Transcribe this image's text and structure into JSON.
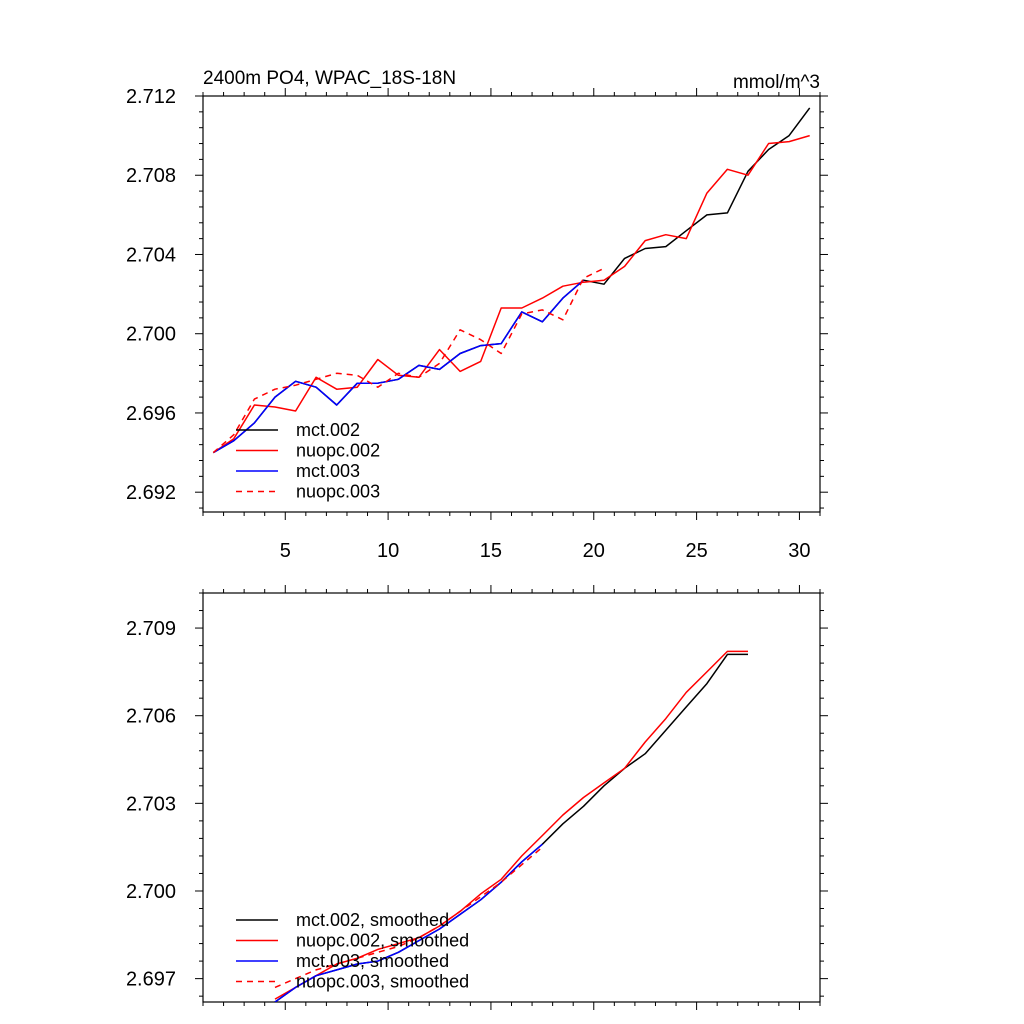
{
  "chart_data": [
    {
      "type": "line",
      "title_left": "2400m PO4, WPAC_18S-18N",
      "title_right": "mmol/m^3",
      "xlim": [
        1,
        31
      ],
      "ylim": [
        2.691,
        2.712
      ],
      "xticks": [
        5,
        10,
        15,
        20,
        25,
        30
      ],
      "xtick_labels": [
        "5",
        "10",
        "15",
        "20",
        "25",
        "30"
      ],
      "yticks": [
        2.692,
        2.696,
        2.7,
        2.704,
        2.708,
        2.712
      ],
      "ytick_labels": [
        "2.692",
        "2.696",
        "2.700",
        "2.704",
        "2.708",
        "2.712"
      ],
      "series": [
        {
          "name": "mct.002",
          "color": "#000000",
          "dash": "none",
          "x": [
            1.5,
            2.5,
            3.5,
            4.5,
            5.5,
            6.5,
            7.5,
            8.5,
            9.5,
            10.5,
            11.5,
            12.5,
            13.5,
            14.5,
            15.5,
            16.5,
            17.5,
            18.5,
            19.5,
            20.5,
            21.5,
            22.5,
            23.5,
            24.5,
            25.5,
            26.5,
            27.5,
            28.5,
            29.5,
            30.5
          ],
          "y": [
            2.694,
            2.6946,
            2.6955,
            2.6968,
            2.6976,
            2.6973,
            2.6964,
            2.6975,
            2.6975,
            2.6977,
            2.6984,
            2.6982,
            2.699,
            2.6994,
            2.6995,
            2.7011,
            2.7006,
            2.7018,
            2.7027,
            2.7025,
            2.7038,
            2.7043,
            2.7044,
            2.7052,
            2.706,
            2.7061,
            2.7082,
            2.7093,
            2.71,
            2.7114
          ]
        },
        {
          "name": "nuopc.002",
          "color": "#ff0000",
          "dash": "none",
          "x": [
            1.5,
            2.5,
            3.5,
            4.5,
            5.5,
            6.5,
            7.5,
            8.5,
            9.5,
            10.5,
            11.5,
            12.5,
            13.5,
            14.5,
            15.5,
            16.5,
            17.5,
            18.5,
            19.5,
            20.5,
            21.5,
            22.5,
            23.5,
            24.5,
            25.5,
            26.5,
            27.5,
            28.5,
            29.5,
            30.5
          ],
          "y": [
            2.694,
            2.6947,
            2.6964,
            2.6963,
            2.6961,
            2.6978,
            2.6972,
            2.6973,
            2.6987,
            2.6979,
            2.6978,
            2.6992,
            2.6981,
            2.6986,
            2.7013,
            2.7013,
            2.7018,
            2.7024,
            2.7026,
            2.7027,
            2.7034,
            2.7047,
            2.705,
            2.7048,
            2.7071,
            2.7083,
            2.708,
            2.7096,
            2.7097,
            2.71
          ]
        },
        {
          "name": "mct.003",
          "color": "#0000ff",
          "dash": "none",
          "x": [
            1.5,
            2.5,
            3.5,
            4.5,
            5.5,
            6.5,
            7.5,
            8.5,
            9.5,
            10.5,
            11.5,
            12.5,
            13.5,
            14.5,
            15.5,
            16.5,
            17.5,
            18.5,
            19.5
          ],
          "y": [
            2.694,
            2.6946,
            2.6955,
            2.6968,
            2.6976,
            2.6973,
            2.6964,
            2.6975,
            2.6975,
            2.6977,
            2.6984,
            2.6982,
            2.699,
            2.6994,
            2.6995,
            2.7011,
            2.7006,
            2.7018,
            2.7027
          ]
        },
        {
          "name": "nuopc.003",
          "color": "#ff0000",
          "dash": "6,5",
          "x": [
            1.5,
            2.5,
            3.5,
            4.5,
            5.5,
            6.5,
            7.5,
            8.5,
            9.5,
            10.5,
            11.5,
            12.5,
            13.5,
            14.5,
            15.5,
            16.5,
            17.5,
            18.5,
            19.5,
            20.5
          ],
          "y": [
            2.694,
            2.6949,
            2.6967,
            2.6972,
            2.6974,
            2.6977,
            2.698,
            2.6979,
            2.6973,
            2.698,
            2.6978,
            2.6985,
            2.7002,
            2.6997,
            2.699,
            2.701,
            2.7012,
            2.7007,
            2.7028,
            2.7033
          ]
        }
      ]
    },
    {
      "type": "line",
      "xlim": [
        1,
        31
      ],
      "ylim": [
        2.6962,
        2.7102
      ],
      "xticks": [
        5,
        10,
        15,
        20,
        25,
        30
      ],
      "yticks": [
        2.697,
        2.7,
        2.703,
        2.706,
        2.709
      ],
      "ytick_labels": [
        "2.697",
        "2.700",
        "2.703",
        "2.706",
        "2.709"
      ],
      "series": [
        {
          "name": "mct.002, smoothed",
          "color": "#000000",
          "dash": "none",
          "x": [
            4.5,
            5.5,
            6.5,
            7.5,
            8.5,
            9.5,
            10.5,
            11.5,
            12.5,
            13.5,
            14.5,
            15.5,
            16.5,
            17.5,
            18.5,
            19.5,
            20.5,
            21.5,
            22.5,
            23.5,
            24.5,
            25.5,
            26.5,
            27.5
          ],
          "y": [
            2.6962,
            2.6967,
            2.6971,
            2.6973,
            2.6975,
            2.6976,
            2.6979,
            2.6983,
            2.6987,
            2.6992,
            2.6997,
            2.7003,
            2.701,
            2.7016,
            2.7023,
            2.7029,
            2.7036,
            2.7042,
            2.7047,
            2.7055,
            2.7063,
            2.7071,
            2.7081,
            2.7081
          ]
        },
        {
          "name": "nuopc.002, smoothed",
          "color": "#ff0000",
          "dash": "none",
          "x": [
            4.5,
            5.5,
            6.5,
            7.5,
            8.5,
            9.5,
            10.5,
            11.5,
            12.5,
            13.5,
            14.5,
            15.5,
            16.5,
            17.5,
            18.5,
            19.5,
            20.5,
            21.5,
            22.5,
            23.5,
            24.5,
            25.5,
            26.5,
            27.5
          ],
          "y": [
            2.6963,
            2.6967,
            2.6971,
            2.6975,
            2.6977,
            2.698,
            2.6982,
            2.6984,
            2.6988,
            2.6993,
            2.6999,
            2.7004,
            2.7012,
            2.7019,
            2.7026,
            2.7032,
            2.7037,
            2.7042,
            2.7051,
            2.7059,
            2.7068,
            2.7075,
            2.7082,
            2.7082
          ]
        },
        {
          "name": "mct.003, smoothed",
          "color": "#0000ff",
          "dash": "none",
          "x": [
            4.5,
            5.5,
            6.5,
            7.5,
            8.5,
            9.5,
            10.5,
            11.5,
            12.5,
            13.5,
            14.5,
            15.5,
            16.5,
            17.5
          ],
          "y": [
            2.6962,
            2.6967,
            2.6971,
            2.6973,
            2.6975,
            2.6976,
            2.6979,
            2.6983,
            2.6987,
            2.6992,
            2.6997,
            2.7003,
            2.701,
            2.7016
          ]
        },
        {
          "name": "nuopc.003, smoothed",
          "color": "#ff0000",
          "dash": "6,5",
          "x": [
            4.5,
            5.5,
            6.5,
            7.5,
            8.5,
            9.5,
            10.5,
            11.5,
            12.5,
            13.5,
            14.5,
            15.5,
            16.5,
            17.5
          ],
          "y": [
            2.6967,
            2.697,
            2.6973,
            2.6975,
            2.6977,
            2.6979,
            2.6981,
            2.6984,
            2.6988,
            2.6993,
            2.6998,
            2.7003,
            2.7009,
            2.7015
          ]
        }
      ]
    }
  ]
}
